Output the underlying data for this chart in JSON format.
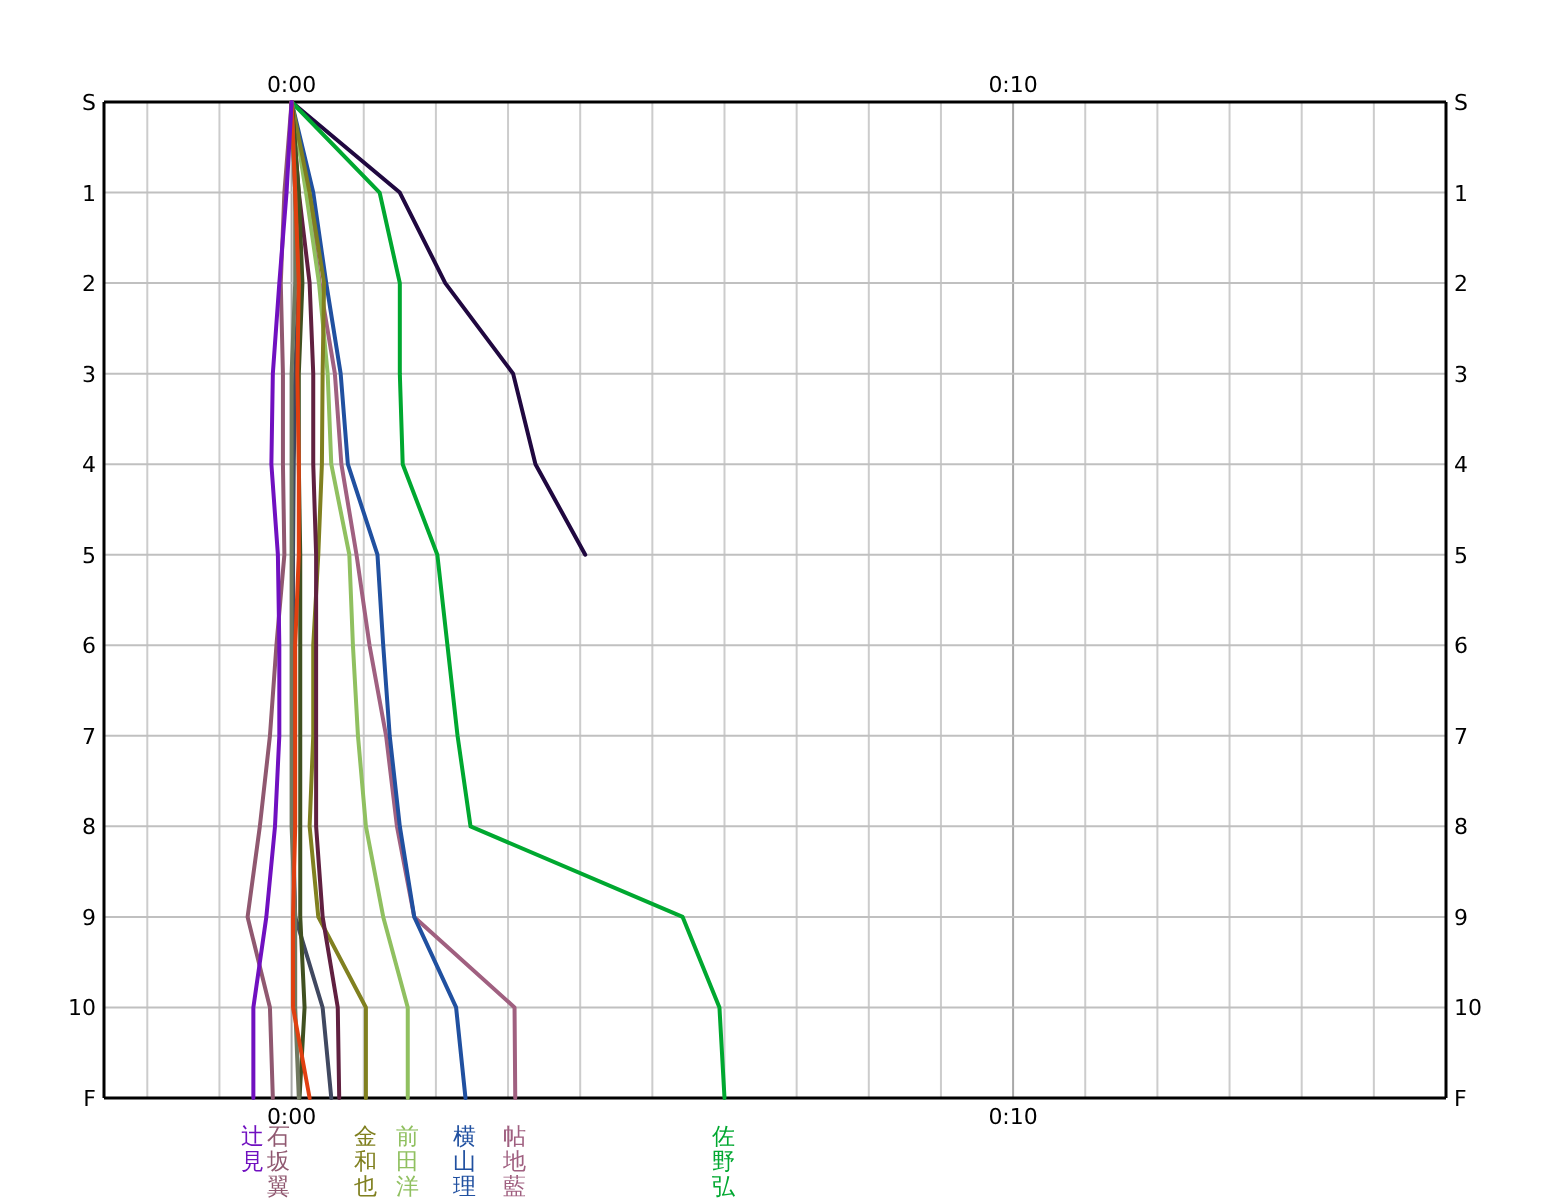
{
  "chart_data": {
    "type": "line",
    "xlim": [
      -2.6,
      16
    ],
    "xticks": [
      {
        "value": -2,
        "label": null
      },
      {
        "value": -1,
        "label": null
      },
      {
        "value": 0,
        "label": "0:00"
      },
      {
        "value": 1,
        "label": null
      },
      {
        "value": 2,
        "label": null
      },
      {
        "value": 3,
        "label": null
      },
      {
        "value": 4,
        "label": null
      },
      {
        "value": 5,
        "label": null
      },
      {
        "value": 6,
        "label": null
      },
      {
        "value": 7,
        "label": null
      },
      {
        "value": 8,
        "label": null
      },
      {
        "value": 9,
        "label": null
      },
      {
        "value": 10,
        "label": "0:10"
      },
      {
        "value": 11,
        "label": null
      },
      {
        "value": 12,
        "label": null
      },
      {
        "value": 13,
        "label": null
      },
      {
        "value": 14,
        "label": null
      },
      {
        "value": 15,
        "label": null
      }
    ],
    "x2lim": [
      -2.6,
      16
    ],
    "x2ticks": [
      {
        "value": 0,
        "label": "0:00"
      },
      {
        "value": 10,
        "label": "0:10"
      }
    ],
    "ylim": [
      11,
      0
    ],
    "yticks": [
      {
        "value": 0,
        "label": "S"
      },
      1,
      2,
      3,
      4,
      5,
      6,
      7,
      8,
      9,
      10,
      {
        "value": 11,
        "label": "F"
      }
    ],
    "y2lim": [
      11,
      0
    ],
    "y2ticks": [
      {
        "value": 0,
        "label": "S"
      },
      1,
      2,
      3,
      4,
      5,
      6,
      7,
      8,
      9,
      10,
      {
        "value": 11,
        "label": "F"
      }
    ],
    "grid": true,
    "series": [
      {
        "color": "#200840",
        "x": [
          0,
          1.5,
          2.13,
          3.07,
          3.38,
          4.07
        ],
        "values": [
          0,
          1,
          2,
          3,
          4,
          5
        ]
      },
      {
        "name": "佐野弘",
        "color": "#00a830",
        "x": [
          0,
          1.22,
          1.5,
          1.5,
          1.54,
          2.02,
          2.16,
          2.3,
          2.48,
          5.42,
          5.93,
          6.0
        ],
        "values": [
          0,
          1,
          2,
          3,
          4,
          5,
          6,
          7,
          8,
          9,
          10,
          11
        ]
      },
      {
        "name": "帖地藍",
        "color": "#a06080",
        "x": [
          0,
          0.22,
          0.39,
          0.6,
          0.69,
          0.9,
          1.08,
          1.31,
          1.46,
          1.7,
          3.09,
          3.1
        ],
        "values": [
          0,
          1,
          2,
          3,
          4,
          5,
          6,
          7,
          8,
          9,
          10,
          11
        ]
      },
      {
        "name": "横山理",
        "color": "#2050a0",
        "x": [
          0,
          0.3,
          0.48,
          0.68,
          0.78,
          1.19,
          1.27,
          1.36,
          1.5,
          1.7,
          2.28,
          2.41
        ],
        "values": [
          0,
          1,
          2,
          3,
          4,
          5,
          6,
          7,
          8,
          9,
          10,
          11
        ]
      },
      {
        "name": "前田洋",
        "color": "#90c060",
        "x": [
          0,
          0.2,
          0.38,
          0.5,
          0.55,
          0.8,
          0.85,
          0.92,
          1.03,
          1.27,
          1.61,
          1.61
        ],
        "values": [
          0,
          1,
          2,
          3,
          4,
          5,
          6,
          7,
          8,
          9,
          10,
          11
        ]
      },
      {
        "name": "金和也",
        "color": "#808020",
        "x": [
          0,
          0.25,
          0.45,
          0.43,
          0.42,
          0.37,
          0.3,
          0.3,
          0.25,
          0.37,
          1.03,
          1.03
        ],
        "values": [
          0,
          1,
          2,
          3,
          4,
          5,
          6,
          7,
          8,
          9,
          10,
          11
        ]
      },
      {
        "color": "#602040",
        "x": [
          0,
          0.1,
          0.25,
          0.3,
          0.3,
          0.34,
          0.34,
          0.34,
          0.34,
          0.43,
          0.64,
          0.66
        ],
        "values": [
          0,
          1,
          2,
          3,
          4,
          5,
          6,
          7,
          8,
          9,
          10,
          11
        ]
      },
      {
        "color": "#404860",
        "x": [
          0,
          0.05,
          0.1,
          0.05,
          0.03,
          0.02,
          0.02,
          0.02,
          0.02,
          0.05,
          0.43,
          0.55
        ],
        "values": [
          0,
          1,
          2,
          3,
          4,
          5,
          6,
          7,
          8,
          9,
          10,
          11
        ]
      },
      {
        "color": "#405020",
        "x": [
          0,
          0.1,
          0.15,
          0.1,
          0.1,
          0.12,
          0.12,
          0.12,
          0.12,
          0.12,
          0.18,
          0.11
        ],
        "values": [
          0,
          1,
          2,
          3,
          4,
          5,
          6,
          7,
          8,
          9,
          10,
          11
        ]
      },
      {
        "color": "#707860",
        "x": [
          0,
          0.05,
          0.05,
          0,
          0,
          0,
          0,
          0,
          0,
          0.05,
          0.05,
          0.1
        ],
        "values": [
          0,
          1,
          2,
          3,
          4,
          5,
          6,
          7,
          8,
          9,
          10,
          11
        ]
      },
      {
        "color": "#e04010",
        "x": [
          0,
          0.05,
          0.1,
          0.08,
          0.1,
          0.1,
          0.05,
          0.05,
          0.05,
          0.02,
          0.02,
          0.25
        ],
        "values": [
          0,
          1,
          2,
          3,
          4,
          5,
          6,
          7,
          8,
          9,
          10,
          11
        ]
      },
      {
        "name": "石坂翼",
        "color": "#905870",
        "x": [
          0,
          -0.1,
          -0.15,
          -0.12,
          -0.12,
          -0.1,
          -0.21,
          -0.3,
          -0.44,
          -0.61,
          -0.3,
          -0.26
        ],
        "values": [
          0,
          1,
          2,
          3,
          4,
          5,
          6,
          7,
          8,
          9,
          10,
          11
        ]
      },
      {
        "name": "辻見",
        "color": "#7010c0",
        "x": [
          0,
          -0.07,
          -0.17,
          -0.26,
          -0.28,
          -0.19,
          -0.17,
          -0.17,
          -0.23,
          -0.35,
          -0.53,
          -0.53
        ],
        "values": [
          0,
          1,
          2,
          3,
          4,
          5,
          6,
          7,
          8,
          9,
          10,
          11
        ]
      }
    ]
  }
}
